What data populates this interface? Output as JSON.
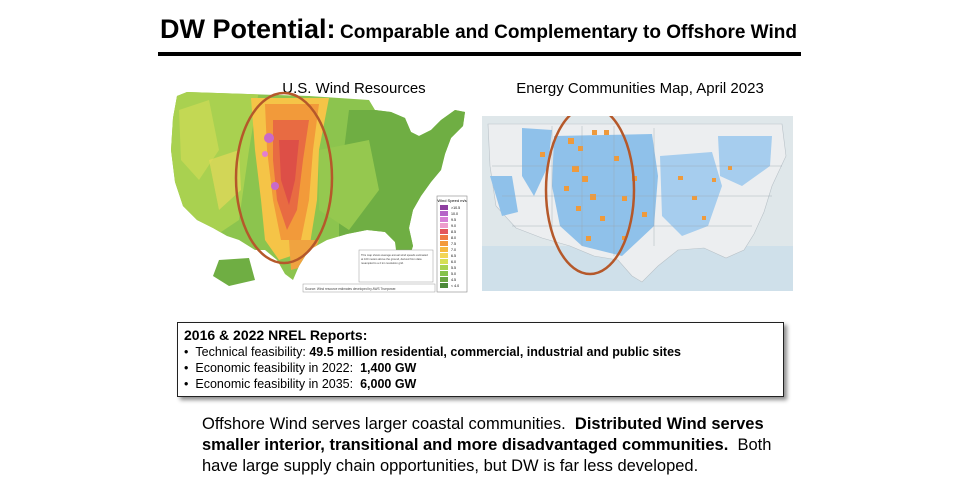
{
  "slide": {
    "title_main": "DW Potential:",
    "title_sub": "Comparable and Complementary to Offshore Wind"
  },
  "left_map": {
    "title": "U.S. Wind Resources",
    "legend_title": "Wind Speed m/s",
    "legend_items": [
      ">10.5",
      "10.0",
      "9.5",
      "9.0",
      "8.5",
      "8.0",
      "7.5",
      "7.0",
      "6.5",
      "6.0",
      "5.5",
      "5.0",
      "4.5",
      "< 4.0"
    ],
    "legend_colors": [
      "#8e3fa0",
      "#b565c7",
      "#d67fd5",
      "#ee9ccd",
      "#e3565b",
      "#ef7a42",
      "#f39a3a",
      "#f6b93f",
      "#f3d656",
      "#d6df55",
      "#a8d251",
      "#86c24b",
      "#6aa642",
      "#4d8a3a"
    ],
    "note": "This map shows average annual wind speeds estimated at 100 meters above the ground, derived from data that has been resampled to a 2 km resolution grid. Actual wind speeds at a particular location may differ due to terrain, obstacles and local conditions.",
    "source": "Source: Wind resource estimates developed by AWS Truepower."
  },
  "right_map": {
    "title": "Energy Communities Map, April 2023"
  },
  "reports": {
    "title": "2016 & 2022 NREL Reports:",
    "items": [
      {
        "label": "Technical feasibility: ",
        "value": "49.5 million residential, commercial, industrial and public sites"
      },
      {
        "label": "Economic feasibility in 2022:  ",
        "value": "1,400 GW"
      },
      {
        "label": "Economic feasibility in 2035:  ",
        "value": "6,000 GW"
      }
    ]
  },
  "closing": {
    "part1": "Offshore Wind serves larger coastal communities.  ",
    "part2": "Distributed Wind serves smaller interior, transitional and more disadvantaged communities.",
    "part3": "  Both have large supply chain opportunities, but DW is far less developed."
  },
  "colors": {
    "oval": "#b5582a",
    "us_green": "#86c24b",
    "plains_orange": "#ef7a42",
    "community_blue": "#8fc1ea",
    "community_orange": "#ee9a3c"
  }
}
